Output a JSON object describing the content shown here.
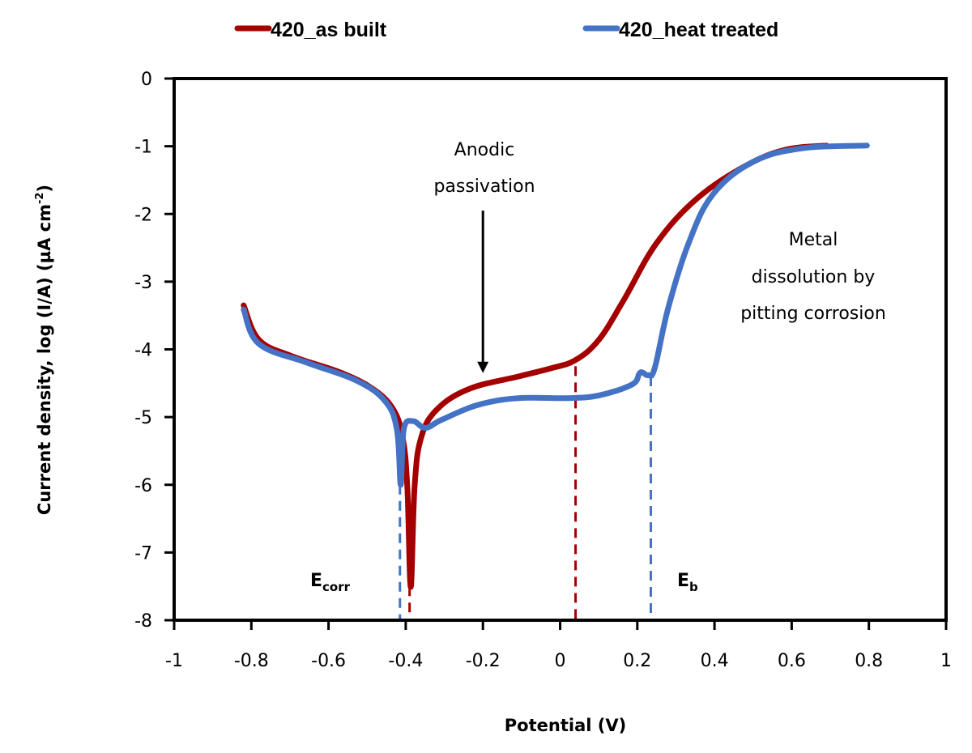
{
  "chart_data": {
    "type": "line",
    "title": "",
    "xlabel": "Potential (V)",
    "ylabel_main": "Current density, log (I/A) (µA cm",
    "ylabel_sup": "-2",
    "ylabel_end": ")",
    "xlim": [
      -1,
      1
    ],
    "ylim": [
      -8,
      0
    ],
    "xticks": [
      "-1",
      "-0.8",
      "-0.6",
      "-0.4",
      "-0.2",
      "0",
      "0.2",
      "0.4",
      "0.6",
      "0.8",
      "1"
    ],
    "xtick_values": [
      -1,
      -0.8,
      -0.6,
      -0.4,
      -0.2,
      0,
      0.2,
      0.4,
      0.6,
      0.8,
      1
    ],
    "yticks": [
      "0",
      "-1",
      "-2",
      "-3",
      "-4",
      "-5",
      "-6",
      "-7",
      "-8"
    ],
    "ytick_values": [
      0,
      -1,
      -2,
      -3,
      -4,
      -5,
      -6,
      -7,
      -8
    ],
    "grid": false,
    "legend_position": "top",
    "series": [
      {
        "name": "420_as built",
        "color": "#A50000",
        "x": [
          -0.82,
          -0.78,
          -0.695,
          -0.57,
          -0.486,
          -0.433,
          -0.408,
          -0.396,
          -0.387,
          -0.377,
          -0.36,
          -0.318,
          -0.234,
          -0.108,
          -0.024,
          0.039,
          0.1,
          0.165,
          0.25,
          0.355,
          0.48,
          0.585,
          0.69
        ],
        "y": [
          -3.35,
          -3.86,
          -4.1,
          -4.34,
          -4.58,
          -4.88,
          -5.3,
          -6.02,
          -7.51,
          -6.02,
          -5.3,
          -4.88,
          -4.58,
          -4.4,
          -4.28,
          -4.16,
          -3.86,
          -3.27,
          -2.43,
          -1.77,
          -1.29,
          -1.05,
          -0.99
        ]
      },
      {
        "name": "420_heat treated",
        "color": "#4472C4",
        "x": [
          -0.82,
          -0.78,
          -0.654,
          -0.528,
          -0.454,
          -0.423,
          -0.413,
          -0.405,
          -0.381,
          -0.349,
          -0.307,
          -0.213,
          -0.108,
          0.018,
          0.1,
          0.186,
          0.205,
          0.213,
          0.228,
          0.245,
          0.28,
          0.333,
          0.396,
          0.5,
          0.627,
          0.795
        ],
        "y": [
          -3.41,
          -3.92,
          -4.2,
          -4.46,
          -4.76,
          -5.18,
          -6.0,
          -5.18,
          -5.06,
          -5.16,
          -5.04,
          -4.82,
          -4.72,
          -4.72,
          -4.68,
          -4.52,
          -4.36,
          -4.34,
          -4.38,
          -4.28,
          -3.39,
          -2.43,
          -1.71,
          -1.23,
          -1.03,
          -0.99
        ]
      }
    ],
    "reference_lines": [
      {
        "name": "Ecorr heat treated",
        "x": -0.415,
        "y_top": -6.0,
        "color": "#4472C4"
      },
      {
        "name": "Ecorr as built",
        "x": -0.39,
        "y_top": -7.5,
        "color": "#A50000"
      },
      {
        "name": "Eb as built",
        "x": 0.04,
        "y_top": -4.25,
        "color": "#A50000"
      },
      {
        "name": "Eb heat treated",
        "x": 0.235,
        "y_top": -4.4,
        "color": "#4472C4"
      }
    ],
    "annotations": {
      "anodic_line1": "Anodic",
      "anodic_line2": "passivation",
      "metal_line1": "Metal",
      "metal_line2": "dissolution by",
      "metal_line3": "pitting corrosion",
      "ecorr_main": "E",
      "ecorr_sub": "corr",
      "eb_main": "E",
      "eb_sub": "b"
    },
    "arrow": {
      "x": -0.2,
      "y_from": -1.95,
      "y_to": -4.35
    }
  }
}
